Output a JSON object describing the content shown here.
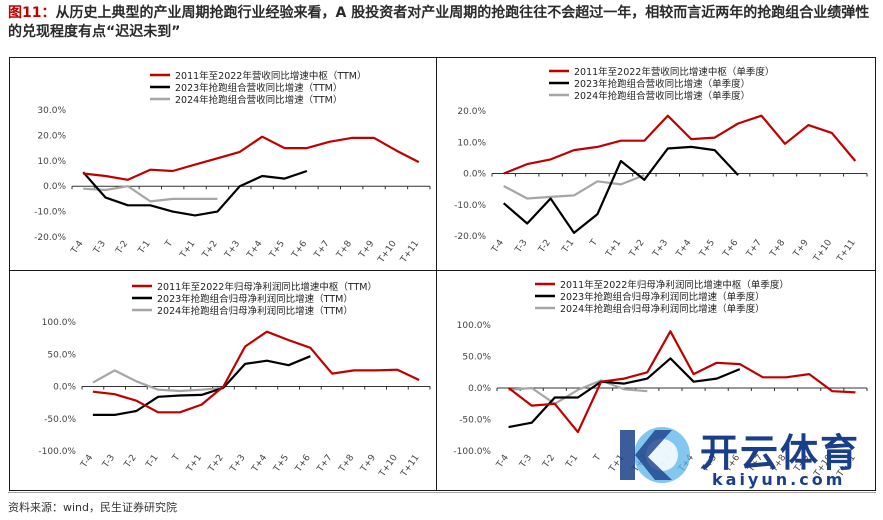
{
  "header": {
    "figure_num": "图11：",
    "title": "从历史上典型的产业周期抢跑行业经验来看，A 股投资者对产业周期的抢跑往往不会超过一年，相较而言近两年的抢跑组合业绩弹性的兑现程度有点“迟迟未到”"
  },
  "footer": {
    "source": "资料来源：wind，民生证券研究院"
  },
  "watermark": {
    "brand": "开云体育",
    "url": "kaiyun.com"
  },
  "colors": {
    "red": "#c00000",
    "black": "#000000",
    "gray": "#a6a6a6"
  },
  "chart_data": [
    {
      "type": "line",
      "categories": [
        "T-4",
        "T-3",
        "T-2",
        "T-1",
        "T",
        "T+1",
        "T+2",
        "T+3",
        "T+4",
        "T+5",
        "T+6",
        "T+7",
        "T+8",
        "T+9",
        "T+10",
        "T+11"
      ],
      "ylim": [
        -20,
        30
      ],
      "yticks": [
        -20,
        -10,
        0,
        10,
        20,
        30
      ],
      "ytick_labels": [
        "-20.0%",
        "-10.0%",
        "0.0%",
        "10.0%",
        "20.0%",
        "30.0%"
      ],
      "legend_position": "top-center",
      "series": [
        {
          "name": "2011年至2022年营收同比增速中枢（TTM）",
          "color": "#c00000",
          "values": [
            5,
            4,
            2.5,
            6.5,
            6,
            8.5,
            11,
            13.5,
            19.5,
            15,
            15,
            17.5,
            19,
            19,
            14,
            9.5
          ]
        },
        {
          "name": "2023年抢跑组合营收同比增速（TTM）",
          "color": "#000000",
          "values": [
            5.5,
            -4.5,
            -7.5,
            -7.5,
            -10,
            -11.5,
            -10,
            0,
            4,
            3,
            6,
            null,
            null,
            null,
            null,
            null
          ]
        },
        {
          "name": "2024年抢跑组合营收同比增速（TTM）",
          "color": "#a6a6a6",
          "values": [
            -1,
            -1.5,
            0,
            -6,
            -5,
            -5,
            -5,
            null,
            null,
            null,
            null,
            null,
            null,
            null,
            null,
            null
          ]
        }
      ]
    },
    {
      "type": "line",
      "categories": [
        "T-4",
        "T-3",
        "T-2",
        "T-1",
        "T",
        "T+1",
        "T+2",
        "T+3",
        "T+4",
        "T+5",
        "T+6",
        "T+7",
        "T+8",
        "T+9",
        "T+10",
        "T+11"
      ],
      "ylim": [
        -20,
        20
      ],
      "yticks": [
        -20,
        -10,
        0,
        10,
        20
      ],
      "ytick_labels": [
        "-20.0%",
        "-10.0%",
        "0.0%",
        "10.0%",
        "20.0%"
      ],
      "legend_position": "top-center",
      "series": [
        {
          "name": "2011年至2022年营收同比增速中枢（单季度）",
          "color": "#c00000",
          "values": [
            0,
            3,
            4.5,
            7.5,
            8.5,
            10.5,
            10.5,
            18.5,
            11,
            11.5,
            16,
            18.5,
            9.5,
            15.5,
            13,
            4
          ]
        },
        {
          "name": "2023年抢跑组合营收同比增速（单季度）",
          "color": "#000000",
          "values": [
            -9.5,
            -16,
            -8,
            -19,
            -13,
            4,
            -2,
            8,
            8.5,
            7.5,
            -0.5,
            null,
            null,
            null,
            null,
            null
          ]
        },
        {
          "name": "2024年抢跑组合营收同比增速（单季度）",
          "color": "#a6a6a6",
          "values": [
            -4,
            -8,
            -7.5,
            -7,
            -2.5,
            -3.5,
            -0.5,
            null,
            null,
            null,
            null,
            null,
            null,
            null,
            null,
            null
          ]
        }
      ]
    },
    {
      "type": "line",
      "categories": [
        "T-4",
        "T-3",
        "T-2",
        "T-1",
        "T",
        "T+1",
        "T+2",
        "T+3",
        "T+4",
        "T+5",
        "T+6",
        "T+7",
        "T+8",
        "T+9",
        "T+10",
        "T+11"
      ],
      "ylim": [
        -100,
        100
      ],
      "yticks": [
        -100,
        -50,
        0,
        50,
        100
      ],
      "ytick_labels": [
        "-100.0%",
        "-50.0%",
        "0.0%",
        "50.0%",
        "100.0%"
      ],
      "legend_position": "top-center",
      "series": [
        {
          "name": "2011年至2022年归母净利润同比增速中枢（TTM）",
          "color": "#c00000",
          "values": [
            -8,
            -12,
            -22,
            -40,
            -40,
            -28,
            0,
            62,
            85,
            72,
            60,
            20,
            25,
            25,
            26,
            10
          ]
        },
        {
          "name": "2023年抢跑组合归母净利润同比增速（TTM）",
          "color": "#000000",
          "values": [
            -44,
            -44,
            -38,
            -16,
            -14,
            -13,
            -2,
            35,
            40,
            33,
            47,
            null,
            null,
            null,
            null,
            null
          ]
        },
        {
          "name": "2024年抢跑组合归母净利润同比增速（TTM）",
          "color": "#a6a6a6",
          "values": [
            6,
            25,
            8,
            -5,
            -7,
            -5,
            -2,
            null,
            null,
            null,
            null,
            null,
            null,
            null,
            null,
            null
          ]
        }
      ]
    },
    {
      "type": "line",
      "categories": [
        "T-4",
        "T-3",
        "T-2",
        "T-1",
        "T",
        "T+1",
        "T+2",
        "T+3",
        "T+4",
        "T+5",
        "T+6",
        "T+7",
        "T+8",
        "T+9",
        "T+10",
        "T+11"
      ],
      "ylim": [
        -100,
        100
      ],
      "yticks": [
        -100,
        -50,
        0,
        50,
        100
      ],
      "ytick_labels": [
        "-100.0%",
        "-50.0%",
        "0.0%",
        "50.0%",
        "100.0%"
      ],
      "legend_position": "top-center",
      "series": [
        {
          "name": "2011年至2022年归母净利润同比增速中枢（单季度）",
          "color": "#c00000",
          "values": [
            0,
            -28,
            -25,
            -70,
            10,
            15,
            25,
            90,
            22,
            40,
            38,
            17,
            17,
            22,
            -5,
            -7
          ]
        },
        {
          "name": "2023年抢跑组合归母净利润同比增速（单季度）",
          "color": "#000000",
          "values": [
            -62,
            -55,
            -15,
            -15,
            10,
            7,
            15,
            47,
            10,
            15,
            30,
            null,
            null,
            null,
            null,
            null
          ]
        },
        {
          "name": "2024年抢跑组合归母净利润同比增速（单季度）",
          "color": "#a6a6a6",
          "values": [
            -3,
            0,
            -25,
            -3,
            12,
            -2,
            -5,
            null,
            null,
            null,
            null,
            null,
            null,
            null,
            null,
            null
          ]
        }
      ]
    }
  ]
}
